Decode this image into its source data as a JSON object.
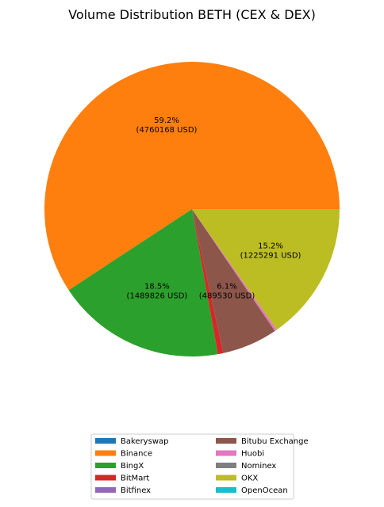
{
  "chart_data": {
    "type": "pie",
    "title": "Volume Distribution BETH (CEX & DEX)",
    "slices": [
      {
        "name": "Bakeryswap",
        "value": 0,
        "color": "#1f77b4"
      },
      {
        "name": "Binance",
        "value": 4760168,
        "pct_label": "59.2%",
        "value_label": "(4760168 USD)",
        "color": "#ff7f0e"
      },
      {
        "name": "BingX",
        "value": 1489826,
        "pct_label": "18.5%",
        "value_label": "(1489826 USD)",
        "color": "#2ca02c"
      },
      {
        "name": "BitMart",
        "value": 48000,
        "color": "#d62728"
      },
      {
        "name": "Bitfinex",
        "value": 0,
        "color": "#9467bd"
      },
      {
        "name": "Bitubu Exchange",
        "value": 489530,
        "pct_label": "6.1%",
        "value_label": "(489530 USD)",
        "color": "#8c564b"
      },
      {
        "name": "Huobi",
        "value": 20000,
        "color": "#e377c2"
      },
      {
        "name": "Nominex",
        "value": 0,
        "color": "#7f7f7f"
      },
      {
        "name": "OKX",
        "value": 1225291,
        "pct_label": "15.2%",
        "value_label": "(1225291 USD)",
        "color": "#bcbd22"
      },
      {
        "name": "OpenOcean",
        "value": 0,
        "color": "#17becf"
      }
    ],
    "legend": {
      "placement": "bottom-center",
      "columns": 2
    }
  }
}
